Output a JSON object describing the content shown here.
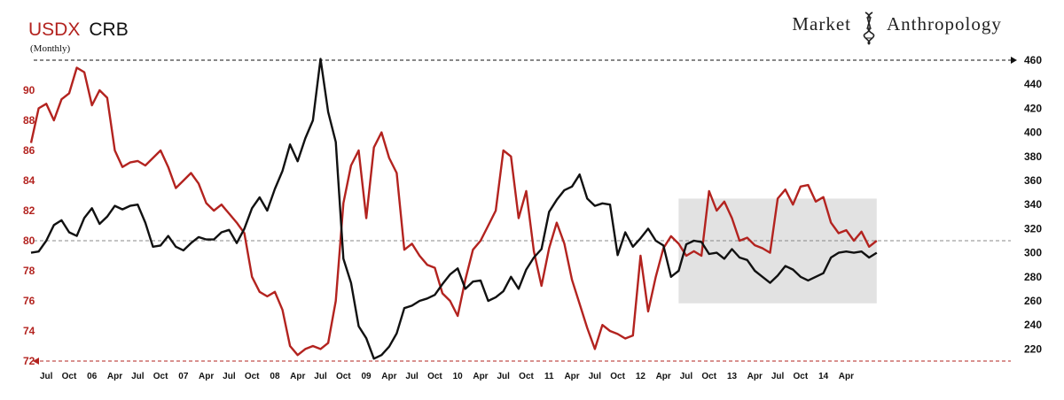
{
  "header": {
    "title_series1": "USDX",
    "title_series2": "CRB",
    "subtitle": "(Monthly)",
    "brand_left": "Market",
    "brand_right": "Anthropology"
  },
  "chart_data": {
    "type": "line",
    "title": "USDX CRB",
    "subtitle": "(Monthly)",
    "x_tick_labels": [
      "Jul",
      "Oct",
      "06",
      "Apr",
      "Jul",
      "Oct",
      "07",
      "Apr",
      "Jul",
      "Oct",
      "08",
      "Apr",
      "Jul",
      "Oct",
      "09",
      "Apr",
      "Jul",
      "Oct",
      "10",
      "Apr",
      "Jul",
      "Oct",
      "11",
      "Apr",
      "Jul",
      "Oct",
      "12",
      "Apr",
      "Jul",
      "Oct",
      "13",
      "Apr",
      "Jul",
      "Oct",
      "14",
      "Apr"
    ],
    "x_start": "2005-05",
    "x_end": "2014-05",
    "left_axis": {
      "series": "USDX",
      "ylim": [
        72,
        92
      ],
      "ticks": [
        72,
        74,
        76,
        78,
        80,
        82,
        84,
        86,
        88,
        90
      ],
      "color": "#b3231f"
    },
    "right_axis": {
      "series": "CRB",
      "ylim": [
        210,
        460
      ],
      "ticks": [
        220,
        240,
        260,
        280,
        300,
        320,
        340,
        360,
        380,
        400,
        420,
        440,
        460
      ],
      "color": "#111111"
    },
    "reference_lines": [
      {
        "axis": "right",
        "value": 460,
        "style": "dashed",
        "color": "#111111"
      },
      {
        "axis": "left",
        "value": 80,
        "style": "dashed",
        "color": "#888888"
      },
      {
        "axis": "left",
        "value": 72,
        "style": "dashed",
        "color": "#b3231f"
      }
    ],
    "shaded_region": {
      "x_start": "2012-06",
      "x_end": "2014-08",
      "right_ylim": [
        258,
        345
      ],
      "color": "#e2e2e2"
    },
    "series": [
      {
        "name": "USDX",
        "axis": "left",
        "color": "#b3231f",
        "points": [
          [
            "2005-05",
            86.5
          ],
          [
            "2005-06",
            88.8
          ],
          [
            "2005-07",
            89.1
          ],
          [
            "2005-08",
            88.0
          ],
          [
            "2005-09",
            89.4
          ],
          [
            "2005-10",
            89.8
          ],
          [
            "2005-11",
            91.5
          ],
          [
            "2005-12",
            91.2
          ],
          [
            "2006-01",
            89.0
          ],
          [
            "2006-02",
            90.0
          ],
          [
            "2006-03",
            89.5
          ],
          [
            "2006-04",
            86.0
          ],
          [
            "2006-05",
            84.9
          ],
          [
            "2006-06",
            85.2
          ],
          [
            "2006-07",
            85.3
          ],
          [
            "2006-08",
            85.0
          ],
          [
            "2006-09",
            85.5
          ],
          [
            "2006-10",
            86.0
          ],
          [
            "2006-11",
            84.9
          ],
          [
            "2006-12",
            83.5
          ],
          [
            "2007-01",
            84.0
          ],
          [
            "2007-02",
            84.5
          ],
          [
            "2007-03",
            83.8
          ],
          [
            "2007-04",
            82.5
          ],
          [
            "2007-05",
            82.0
          ],
          [
            "2007-06",
            82.4
          ],
          [
            "2007-07",
            81.8
          ],
          [
            "2007-08",
            81.2
          ],
          [
            "2007-09",
            80.5
          ],
          [
            "2007-10",
            77.6
          ],
          [
            "2007-11",
            76.6
          ],
          [
            "2007-12",
            76.3
          ],
          [
            "2008-01",
            76.6
          ],
          [
            "2008-02",
            75.4
          ],
          [
            "2008-03",
            73.0
          ],
          [
            "2008-04",
            72.4
          ],
          [
            "2008-05",
            72.8
          ],
          [
            "2008-06",
            73.0
          ],
          [
            "2008-07",
            72.8
          ],
          [
            "2008-08",
            73.2
          ],
          [
            "2008-09",
            76.0
          ],
          [
            "2008-10",
            82.5
          ],
          [
            "2008-11",
            85.0
          ],
          [
            "2008-12",
            86.0
          ],
          [
            "2009-01",
            81.5
          ],
          [
            "2009-02",
            86.2
          ],
          [
            "2009-03",
            87.2
          ],
          [
            "2009-04",
            85.5
          ],
          [
            "2009-05",
            84.5
          ],
          [
            "2009-06",
            79.4
          ],
          [
            "2009-07",
            79.8
          ],
          [
            "2009-08",
            79.0
          ],
          [
            "2009-09",
            78.4
          ],
          [
            "2009-10",
            78.2
          ],
          [
            "2009-11",
            76.5
          ],
          [
            "2009-12",
            76.0
          ],
          [
            "2010-01",
            75.0
          ],
          [
            "2010-02",
            77.4
          ],
          [
            "2010-03",
            79.4
          ],
          [
            "2010-04",
            80.0
          ],
          [
            "2010-05",
            81.0
          ],
          [
            "2010-06",
            82.0
          ],
          [
            "2010-07",
            86.0
          ],
          [
            "2010-08",
            85.6
          ],
          [
            "2010-09",
            81.5
          ],
          [
            "2010-10",
            83.3
          ],
          [
            "2010-11",
            79.3
          ],
          [
            "2010-12",
            77.0
          ],
          [
            "2011-01",
            79.5
          ],
          [
            "2011-02",
            81.2
          ],
          [
            "2011-03",
            79.8
          ],
          [
            "2011-04",
            77.4
          ],
          [
            "2011-05",
            75.8
          ],
          [
            "2011-06",
            74.2
          ],
          [
            "2011-07",
            72.8
          ],
          [
            "2011-08",
            74.4
          ],
          [
            "2011-09",
            74.0
          ],
          [
            "2011-10",
            73.8
          ],
          [
            "2011-11",
            73.5
          ],
          [
            "2011-12",
            73.7
          ],
          [
            "2012-01",
            79.0
          ],
          [
            "2012-02",
            75.3
          ],
          [
            "2012-03",
            77.6
          ],
          [
            "2012-04",
            79.5
          ],
          [
            "2012-05",
            80.3
          ],
          [
            "2012-06",
            79.8
          ],
          [
            "2012-07",
            79.0
          ],
          [
            "2012-08",
            79.3
          ],
          [
            "2012-09",
            79.0
          ],
          [
            "2012-10",
            83.3
          ],
          [
            "2012-11",
            82.0
          ],
          [
            "2012-12",
            82.6
          ],
          [
            "2013-01",
            81.5
          ],
          [
            "2013-02",
            80.0
          ],
          [
            "2013-03",
            80.2
          ],
          [
            "2013-04",
            79.7
          ],
          [
            "2013-05",
            79.5
          ],
          [
            "2013-06",
            79.2
          ],
          [
            "2013-07",
            82.8
          ],
          [
            "2013-08",
            83.4
          ],
          [
            "2013-09",
            82.4
          ],
          [
            "2013-10",
            83.6
          ],
          [
            "2013-11",
            83.7
          ],
          [
            "2013-12",
            82.6
          ],
          [
            "2014-01",
            82.9
          ],
          [
            "2014-02",
            81.2
          ],
          [
            "2014-03",
            80.5
          ],
          [
            "2014-04",
            80.7
          ],
          [
            "2014-05",
            80.0
          ],
          [
            "2014-06",
            80.6
          ],
          [
            "2014-07",
            79.6
          ],
          [
            "2014-08",
            80.0
          ]
        ]
      },
      {
        "name": "CRB",
        "axis": "right",
        "color": "#111111",
        "points": [
          [
            "2005-05",
            300
          ],
          [
            "2005-06",
            301
          ],
          [
            "2005-07",
            310
          ],
          [
            "2005-08",
            323
          ],
          [
            "2005-09",
            327
          ],
          [
            "2005-10",
            317
          ],
          [
            "2005-11",
            314
          ],
          [
            "2005-12",
            329
          ],
          [
            "2006-01",
            337
          ],
          [
            "2006-02",
            324
          ],
          [
            "2006-03",
            330
          ],
          [
            "2006-04",
            339
          ],
          [
            "2006-05",
            336
          ],
          [
            "2006-06",
            339
          ],
          [
            "2006-07",
            340
          ],
          [
            "2006-08",
            325
          ],
          [
            "2006-09",
            305
          ],
          [
            "2006-10",
            306
          ],
          [
            "2006-11",
            314
          ],
          [
            "2006-12",
            305
          ],
          [
            "2007-01",
            302
          ],
          [
            "2007-02",
            308
          ],
          [
            "2007-03",
            313
          ],
          [
            "2007-04",
            311
          ],
          [
            "2007-05",
            311
          ],
          [
            "2007-06",
            317
          ],
          [
            "2007-07",
            319
          ],
          [
            "2007-08",
            308
          ],
          [
            "2007-09",
            320
          ],
          [
            "2007-10",
            337
          ],
          [
            "2007-11",
            346
          ],
          [
            "2007-12",
            335
          ],
          [
            "2008-01",
            353
          ],
          [
            "2008-02",
            368
          ],
          [
            "2008-03",
            390
          ],
          [
            "2008-04",
            376
          ],
          [
            "2008-05",
            395
          ],
          [
            "2008-06",
            410
          ],
          [
            "2008-07",
            461
          ],
          [
            "2008-08",
            417
          ],
          [
            "2008-09",
            392
          ],
          [
            "2008-10",
            295
          ],
          [
            "2008-11",
            275
          ],
          [
            "2008-12",
            239
          ],
          [
            "2009-01",
            229
          ],
          [
            "2009-02",
            212
          ],
          [
            "2009-03",
            215
          ],
          [
            "2009-04",
            222
          ],
          [
            "2009-05",
            233
          ],
          [
            "2009-06",
            254
          ],
          [
            "2009-07",
            256
          ],
          [
            "2009-08",
            260
          ],
          [
            "2009-09",
            262
          ],
          [
            "2009-10",
            265
          ],
          [
            "2009-11",
            274
          ],
          [
            "2009-12",
            282
          ],
          [
            "2010-01",
            287
          ],
          [
            "2010-02",
            270
          ],
          [
            "2010-03",
            276
          ],
          [
            "2010-04",
            277
          ],
          [
            "2010-05",
            260
          ],
          [
            "2010-06",
            263
          ],
          [
            "2010-07",
            268
          ],
          [
            "2010-08",
            280
          ],
          [
            "2010-09",
            270
          ],
          [
            "2010-10",
            286
          ],
          [
            "2010-11",
            296
          ],
          [
            "2010-12",
            303
          ],
          [
            "2011-01",
            334
          ],
          [
            "2011-02",
            344
          ],
          [
            "2011-03",
            352
          ],
          [
            "2011-04",
            355
          ],
          [
            "2011-05",
            365
          ],
          [
            "2011-06",
            345
          ],
          [
            "2011-07",
            339
          ],
          [
            "2011-08",
            341
          ],
          [
            "2011-09",
            340
          ],
          [
            "2011-10",
            298
          ],
          [
            "2011-11",
            317
          ],
          [
            "2011-12",
            305
          ],
          [
            "2012-01",
            312
          ],
          [
            "2012-02",
            320
          ],
          [
            "2012-03",
            310
          ],
          [
            "2012-04",
            306
          ],
          [
            "2012-05",
            280
          ],
          [
            "2012-06",
            285
          ],
          [
            "2012-07",
            307
          ],
          [
            "2012-08",
            310
          ],
          [
            "2012-09",
            309
          ],
          [
            "2012-10",
            299
          ],
          [
            "2012-11",
            300
          ],
          [
            "2012-12",
            295
          ],
          [
            "2013-01",
            303
          ],
          [
            "2013-02",
            296
          ],
          [
            "2013-03",
            294
          ],
          [
            "2013-04",
            285
          ],
          [
            "2013-05",
            280
          ],
          [
            "2013-06",
            275
          ],
          [
            "2013-07",
            281
          ],
          [
            "2013-08",
            289
          ],
          [
            "2013-09",
            286
          ],
          [
            "2013-10",
            280
          ],
          [
            "2013-11",
            277
          ],
          [
            "2013-12",
            280
          ],
          [
            "2014-01",
            283
          ],
          [
            "2014-02",
            296
          ],
          [
            "2014-03",
            300
          ],
          [
            "2014-04",
            301
          ],
          [
            "2014-05",
            300
          ],
          [
            "2014-06",
            301
          ],
          [
            "2014-07",
            296
          ],
          [
            "2014-08",
            300
          ]
        ]
      }
    ]
  }
}
